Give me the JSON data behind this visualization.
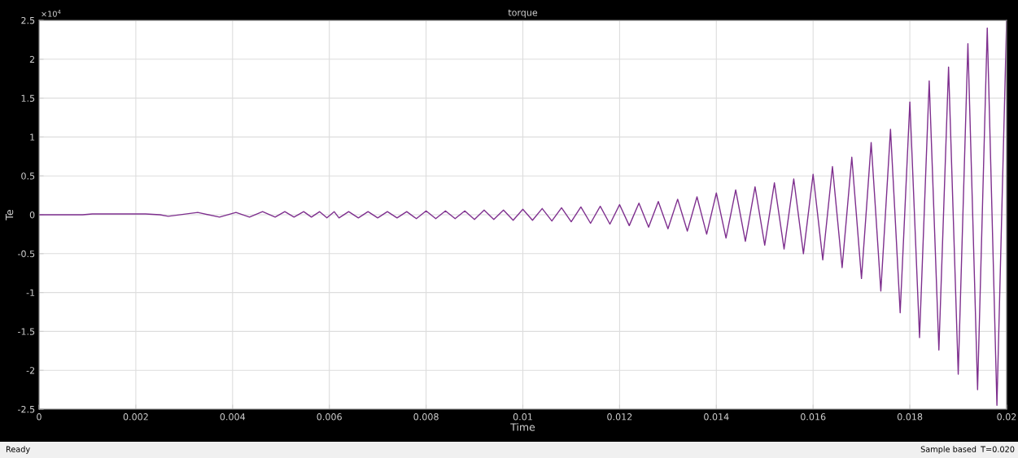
{
  "chart_data": {
    "type": "line",
    "title": "torque",
    "xlabel": "Time",
    "ylabel": "Te",
    "annotations": [
      "×10$^{4}$",
      "Ready",
      "Sample based",
      "T=0.020"
    ],
    "series": [
      {
        "color": "#7e2f8e",
        "x": [
          0,
          0.0009,
          0.0011,
          0.0022,
          0.0025,
          0.00267,
          0.00328,
          0.00373,
          0.00407,
          0.00435,
          0.00462,
          0.00488,
          0.00508,
          0.00527,
          0.00547,
          0.00563,
          0.0058,
          0.00595,
          0.0061,
          0.0062,
          0.0064,
          0.0066,
          0.0068,
          0.007,
          0.0072,
          0.0074,
          0.0076,
          0.0078,
          0.008,
          0.0082,
          0.0084,
          0.0086,
          0.0088,
          0.009,
          0.0092,
          0.0094,
          0.0096,
          0.0098,
          0.01,
          0.0102,
          0.0104,
          0.0106,
          0.0108,
          0.011,
          0.0112,
          0.0114,
          0.0116,
          0.0118,
          0.012,
          0.0122,
          0.0124,
          0.0126,
          0.0128,
          0.013,
          0.0132,
          0.0134,
          0.0136,
          0.0138,
          0.014,
          0.0142,
          0.0144,
          0.0146,
          0.0148,
          0.015,
          0.0152,
          0.0154,
          0.0156,
          0.0158,
          0.016,
          0.0162,
          0.0164,
          0.0166,
          0.0168,
          0.017,
          0.0172,
          0.0174,
          0.0176,
          0.0178,
          0.018,
          0.0182,
          0.0184,
          0.0186,
          0.0188,
          0.019,
          0.0192,
          0.0194,
          0.0196,
          0.0198,
          0.02
        ],
        "values": [
          0,
          0,
          0.01,
          0.01,
          0,
          -0.02,
          0.03,
          -0.03,
          0.03,
          -0.03,
          0.04,
          -0.03,
          0.04,
          -0.03,
          0.04,
          -0.03,
          0.04,
          -0.04,
          0.04,
          -0.04,
          0.04,
          -0.04,
          0.04,
          -0.04,
          0.04,
          -0.04,
          0.04,
          -0.05,
          0.05,
          -0.05,
          0.05,
          -0.05,
          0.05,
          -0.06,
          0.06,
          -0.06,
          0.06,
          -0.07,
          0.07,
          -0.07,
          0.08,
          -0.08,
          0.09,
          -0.09,
          0.1,
          -0.11,
          0.11,
          -0.12,
          0.13,
          -0.14,
          0.15,
          -0.16,
          0.17,
          -0.18,
          0.2,
          -0.21,
          0.23,
          -0.25,
          0.28,
          -0.3,
          0.32,
          -0.34,
          0.36,
          -0.39,
          0.41,
          -0.44,
          0.46,
          -0.5,
          0.52,
          -0.58,
          0.62,
          -0.68,
          0.74,
          -0.82,
          0.93,
          -0.98,
          1.1,
          -1.26,
          1.45,
          -1.58,
          1.72,
          -1.74,
          1.9,
          -2.05,
          2.2,
          -2.25,
          2.4,
          -2.45,
          2.5
        ]
      }
    ],
    "xlim": [
      0,
      0.02
    ],
    "xticks": [
      0,
      0.002,
      0.004,
      0.006,
      0.008,
      0.01,
      0.012,
      0.014,
      0.016,
      0.018,
      0.02
    ],
    "ylim": [
      -2.5,
      2.5
    ],
    "yticks": [
      -2.5,
      -2,
      -1.5,
      -1,
      -0.5,
      0,
      0.5,
      1,
      1.5,
      2,
      2.5
    ],
    "grid": true,
    "legend": false,
    "marker": "none",
    "line_style": "solid"
  }
}
